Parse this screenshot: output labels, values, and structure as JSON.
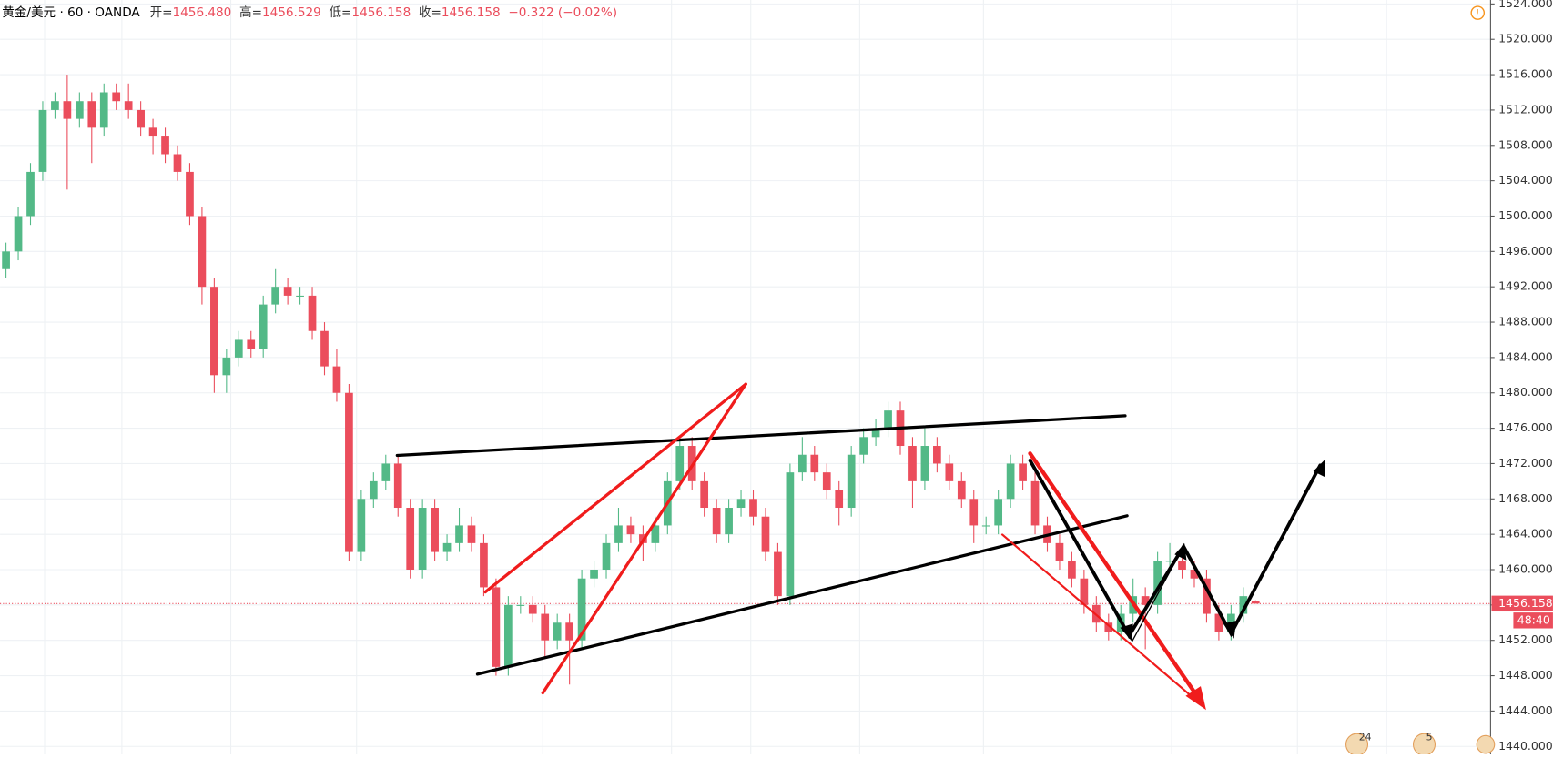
{
  "header": {
    "symbol": "黄金/美元 · 60 · OANDA",
    "open_label": "开=",
    "open": "1456.480",
    "high_label": "高=",
    "high": "1456.529",
    "low_label": "低=",
    "low": "1456.158",
    "close_label": "收=",
    "close": "1456.158",
    "change": "−0.322 (−0.02%)"
  },
  "chart_data": {
    "type": "candlestick",
    "up_color": "#53b987",
    "down_color": "#eb4d5c",
    "grid": true,
    "ylim": [
      1439.1,
      1524.45
    ],
    "yticks": [
      {
        "value": 1440,
        "label": "1440.000"
      },
      {
        "value": 1444,
        "label": "1444.000"
      },
      {
        "value": 1448,
        "label": "1448.000"
      },
      {
        "value": 1452,
        "label": "1452.000"
      },
      {
        "value": 1456,
        "label": "1456.000"
      },
      {
        "value": 1460,
        "label": "1460.000"
      },
      {
        "value": 1464,
        "label": "1464.000"
      },
      {
        "value": 1468,
        "label": "1468.000"
      },
      {
        "value": 1472,
        "label": "1472.000"
      },
      {
        "value": 1476,
        "label": "1476.000"
      },
      {
        "value": 1480,
        "label": "1480.000"
      },
      {
        "value": 1484,
        "label": "1484.000"
      },
      {
        "value": 1488,
        "label": "1488.000"
      },
      {
        "value": 1492,
        "label": "1492.000"
      },
      {
        "value": 1496,
        "label": "1496.000"
      },
      {
        "value": 1500,
        "label": "1500.000"
      },
      {
        "value": 1504,
        "label": "1504.000"
      },
      {
        "value": 1508,
        "label": "1508.000"
      },
      {
        "value": 1512,
        "label": "1512.000"
      },
      {
        "value": 1516,
        "label": "1516.000"
      },
      {
        "value": 1520,
        "label": "1520.000"
      },
      {
        "value": 1524,
        "label": "1524.000"
      }
    ],
    "open": [
      1494,
      1496,
      1500,
      1505,
      1512,
      1513,
      1511,
      1513,
      1510,
      1514,
      1513,
      1512,
      1510,
      1509,
      1507,
      1505,
      1500,
      1492,
      1482,
      1484,
      1486,
      1485,
      1490,
      1492,
      1491,
      1491,
      1487,
      1483,
      1480,
      1462,
      1468,
      1470,
      1472,
      1467,
      1460,
      1467,
      1462,
      1463,
      1465,
      1463,
      1458,
      1449,
      1456,
      1456,
      1455,
      1452,
      1454,
      1452,
      1459,
      1460,
      1463,
      1465,
      1464,
      1463,
      1465,
      1470,
      1474,
      1470,
      1467,
      1464,
      1467,
      1468,
      1466,
      1462,
      1457,
      1471,
      1473,
      1471,
      1469,
      1467,
      1473,
      1475,
      1476,
      1478,
      1474,
      1470,
      1474,
      1472,
      1470,
      1468,
      1465,
      1465,
      1468,
      1472,
      1470,
      1465,
      1463,
      1461,
      1459,
      1456,
      1454,
      1453,
      1455,
      1457,
      1456,
      1461,
      1461,
      1460,
      1459,
      1455,
      1453,
      1455,
      1456.48
    ],
    "high": [
      1497,
      1501,
      1506,
      1513,
      1514,
      1516,
      1514,
      1514,
      1515,
      1515,
      1515,
      1513,
      1511,
      1510,
      1508,
      1506,
      1501,
      1493,
      1485,
      1487,
      1487,
      1491,
      1494,
      1493,
      1492,
      1492,
      1488,
      1485,
      1481,
      1469,
      1471,
      1473,
      1473,
      1468,
      1468,
      1468,
      1464,
      1467,
      1466,
      1464,
      1459,
      1457,
      1457,
      1457,
      1456,
      1455,
      1455,
      1460,
      1461,
      1464,
      1467,
      1466,
      1465,
      1466,
      1471,
      1475,
      1475,
      1471,
      1468,
      1468,
      1469,
      1469,
      1467,
      1463,
      1472,
      1475,
      1474,
      1472,
      1470,
      1474,
      1476,
      1477,
      1479,
      1479,
      1475,
      1476,
      1475,
      1473,
      1471,
      1469,
      1466,
      1469,
      1473,
      1473,
      1471,
      1466,
      1464,
      1462,
      1460,
      1457,
      1455,
      1456,
      1459,
      1458,
      1462,
      1463,
      1462,
      1461,
      1460,
      1456,
      1456,
      1458,
      1456.529
    ],
    "low": [
      1493,
      1495,
      1499,
      1504,
      1511,
      1503,
      1510,
      1506,
      1509,
      1512,
      1511,
      1509,
      1507,
      1506,
      1504,
      1499,
      1490,
      1480,
      1480,
      1483,
      1484,
      1484,
      1489,
      1490,
      1490,
      1486,
      1482,
      1479,
      1461,
      1461,
      1467,
      1469,
      1466,
      1459,
      1459,
      1461,
      1461,
      1462,
      1462,
      1457,
      1448,
      1448,
      1455,
      1454,
      1450,
      1451,
      1447,
      1451,
      1458,
      1459,
      1462,
      1463,
      1461,
      1462,
      1464,
      1469,
      1469,
      1466,
      1463,
      1463,
      1466,
      1465,
      1461,
      1456,
      1456,
      1470,
      1470,
      1468,
      1465,
      1466,
      1472,
      1474,
      1475,
      1473,
      1467,
      1469,
      1471,
      1469,
      1467,
      1463,
      1464,
      1464,
      1467,
      1469,
      1464,
      1462,
      1460,
      1458,
      1455,
      1453,
      1452,
      1452,
      1454,
      1451,
      1455,
      1460,
      1459,
      1458,
      1454,
      1452,
      1452,
      1454,
      1456.158
    ],
    "close": [
      1496,
      1500,
      1505,
      1512,
      1513,
      1511,
      1513,
      1510,
      1514,
      1513,
      1512,
      1510,
      1509,
      1507,
      1505,
      1500,
      1492,
      1482,
      1484,
      1486,
      1485,
      1490,
      1492,
      1491,
      1491,
      1487,
      1483,
      1480,
      1462,
      1468,
      1470,
      1472,
      1467,
      1460,
      1467,
      1462,
      1463,
      1465,
      1463,
      1458,
      1449,
      1456,
      1456,
      1455,
      1452,
      1454,
      1452,
      1459,
      1460,
      1463,
      1465,
      1464,
      1463,
      1465,
      1470,
      1474,
      1470,
      1467,
      1464,
      1467,
      1468,
      1466,
      1462,
      1457,
      1471,
      1473,
      1471,
      1469,
      1467,
      1473,
      1475,
      1476,
      1478,
      1474,
      1470,
      1474,
      1472,
      1470,
      1468,
      1465,
      1465,
      1468,
      1472,
      1470,
      1465,
      1463,
      1461,
      1459,
      1456,
      1454,
      1453,
      1455,
      1457,
      1456,
      1461,
      1461,
      1460,
      1459,
      1455,
      1453,
      1455,
      1457,
      1456.158
    ],
    "last_price": {
      "value": 1456.158,
      "label": "1456.158"
    },
    "countdown": "48:40",
    "events": [
      "24",
      "5"
    ]
  }
}
